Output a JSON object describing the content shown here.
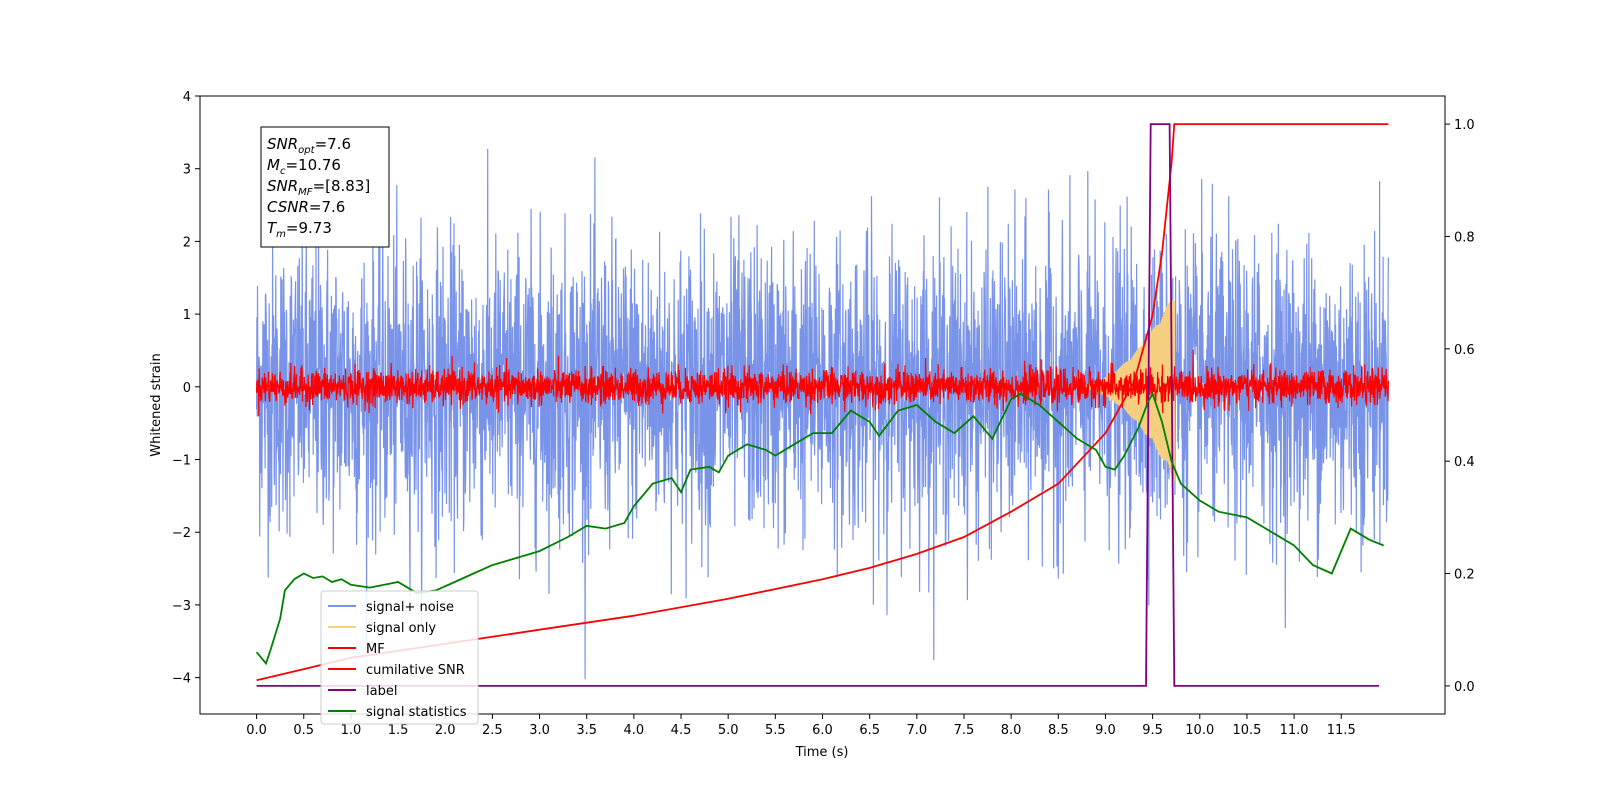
{
  "chart_data": {
    "type": "line",
    "xlabel": "Time (s)",
    "ylabel": "Whitened strain",
    "xlim": [
      -0.6,
      12.6
    ],
    "ylim": [
      -4.5,
      4.0
    ],
    "y2lim": [
      -0.05,
      1.05
    ],
    "x_ticks": [
      "0.0",
      "0.5",
      "1.0",
      "1.5",
      "2.0",
      "2.5",
      "3.0",
      "3.5",
      "4.0",
      "4.5",
      "5.0",
      "5.5",
      "6.0",
      "6.5",
      "7.0",
      "7.5",
      "8.0",
      "8.5",
      "9.0",
      "9.5",
      "10.0",
      "10.5",
      "11.0",
      "11.5"
    ],
    "y_ticks": [
      "4",
      "3",
      "2",
      "1",
      "0",
      "−1",
      "−2",
      "−3",
      "−4"
    ],
    "y_tick_values": [
      4,
      3,
      2,
      1,
      0,
      -1,
      -2,
      -3,
      -4
    ],
    "y2_ticks": [
      "1.0",
      "0.8",
      "0.6",
      "0.4",
      "0.2",
      "0.0"
    ],
    "y2_tick_values": [
      1.0,
      0.8,
      0.6,
      0.4,
      0.2,
      0.0
    ],
    "grid": false,
    "legend_placement": "lower-left",
    "legend": [
      {
        "label": "signal+ noise",
        "color": "#7893e8"
      },
      {
        "label": "signal only",
        "color": "#f5cf7f"
      },
      {
        "label": "MF",
        "color": "#ff0000"
      },
      {
        "label": "cumilative SNR",
        "color": "#ff0000"
      },
      {
        "label": "label",
        "color": "#800080"
      },
      {
        "label": "signal statistics",
        "color": "#008000"
      }
    ],
    "annotation": [
      {
        "base": "SNR",
        "sub": "opt",
        "value": "=7.6"
      },
      {
        "base": "M",
        "sub": "c",
        "value": "=10.76"
      },
      {
        "base": "SNR",
        "sub": "MF",
        "value": "=[8.83]"
      },
      {
        "base": "CSNR",
        "sub": "",
        "value": "=7.6"
      },
      {
        "base": "T",
        "sub": "m",
        "value": "=9.73"
      }
    ],
    "series": [
      {
        "name": "signal+ noise",
        "axis": "left",
        "kind": "noise",
        "x_range": [
          0.0,
          12.0
        ],
        "center": 0.0,
        "std": 1.0,
        "color": "#7893e8"
      },
      {
        "name": "signal only",
        "axis": "left",
        "kind": "chirp",
        "x_range": [
          8.6,
          9.73
        ],
        "peak_amplitude": 1.3,
        "color": "#f5cf7f"
      },
      {
        "name": "MF",
        "axis": "left",
        "kind": "noise",
        "x_range": [
          0.0,
          12.0
        ],
        "center": 0.0,
        "std": 0.12,
        "color": "#ff0000"
      },
      {
        "name": "cumilative SNR",
        "axis": "right",
        "x": [
          0.0,
          0.5,
          1.0,
          2.0,
          3.0,
          4.0,
          5.0,
          6.0,
          6.5,
          7.0,
          7.5,
          8.0,
          8.5,
          9.0,
          9.3,
          9.5,
          9.6,
          9.7,
          9.73,
          12.0
        ],
        "y": [
          0.01,
          0.03,
          0.05,
          0.075,
          0.1,
          0.125,
          0.155,
          0.19,
          0.21,
          0.235,
          0.265,
          0.31,
          0.36,
          0.45,
          0.54,
          0.66,
          0.77,
          0.93,
          1.0,
          1.0
        ],
        "color": "#ff0000"
      },
      {
        "name": "label",
        "axis": "right",
        "x": [
          0.0,
          9.43,
          9.48,
          9.68,
          9.73,
          11.9
        ],
        "y": [
          0.0,
          0.0,
          1.0,
          1.0,
          0.0,
          0.0
        ],
        "color": "#800080"
      },
      {
        "name": "signal statistics",
        "axis": "right",
        "x": [
          0.0,
          0.05,
          0.1,
          0.15,
          0.25,
          0.3,
          0.4,
          0.5,
          0.6,
          0.7,
          0.8,
          0.9,
          1.0,
          1.2,
          1.5,
          1.7,
          1.9,
          2.1,
          2.3,
          2.5,
          2.7,
          3.0,
          3.3,
          3.5,
          3.7,
          3.9,
          4.0,
          4.2,
          4.4,
          4.5,
          4.6,
          4.8,
          4.9,
          5.0,
          5.2,
          5.4,
          5.5,
          5.7,
          5.9,
          6.1,
          6.3,
          6.5,
          6.6,
          6.8,
          7.0,
          7.2,
          7.4,
          7.6,
          7.8,
          8.0,
          8.1,
          8.3,
          8.5,
          8.7,
          8.9,
          9.0,
          9.1,
          9.2,
          9.35,
          9.45,
          9.5,
          9.6,
          9.7,
          9.8,
          10.0,
          10.2,
          10.5,
          10.8,
          11.0,
          11.2,
          11.4,
          11.6,
          11.8,
          11.95
        ],
        "y": [
          0.06,
          0.05,
          0.04,
          0.065,
          0.12,
          0.17,
          0.19,
          0.2,
          0.192,
          0.195,
          0.185,
          0.19,
          0.18,
          0.175,
          0.185,
          0.165,
          0.17,
          0.185,
          0.2,
          0.215,
          0.225,
          0.24,
          0.265,
          0.285,
          0.28,
          0.29,
          0.32,
          0.36,
          0.37,
          0.345,
          0.385,
          0.39,
          0.38,
          0.41,
          0.43,
          0.42,
          0.41,
          0.43,
          0.45,
          0.45,
          0.49,
          0.47,
          0.445,
          0.49,
          0.5,
          0.47,
          0.45,
          0.48,
          0.44,
          0.51,
          0.52,
          0.5,
          0.47,
          0.44,
          0.42,
          0.39,
          0.385,
          0.41,
          0.46,
          0.505,
          0.52,
          0.47,
          0.4,
          0.36,
          0.33,
          0.31,
          0.3,
          0.27,
          0.25,
          0.215,
          0.2,
          0.28,
          0.26,
          0.25
        ],
        "color": "#008000"
      }
    ]
  }
}
